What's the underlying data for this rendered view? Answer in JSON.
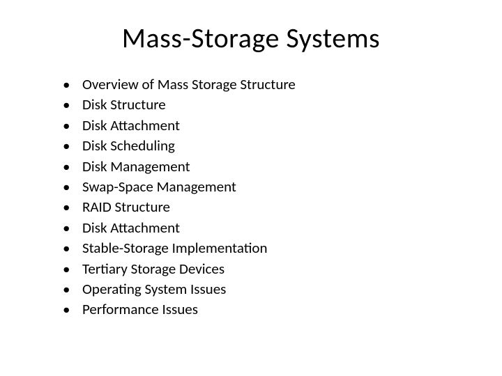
{
  "slide": {
    "title": "Mass-Storage Systems",
    "title_fontsize": 40,
    "title_color": "#000000",
    "background_color": "#ffffff",
    "body_fontsize": 21,
    "body_color": "#000000",
    "bullets": [
      "Overview of Mass Storage Structure",
      "Disk Structure",
      "Disk Attachment",
      "Disk Scheduling",
      "Disk Management",
      "Swap-Space Management",
      "RAID Structure",
      "Disk Attachment",
      "Stable-Storage Implementation",
      "Tertiary Storage Devices",
      "Operating System Issues",
      "Performance Issues"
    ]
  }
}
